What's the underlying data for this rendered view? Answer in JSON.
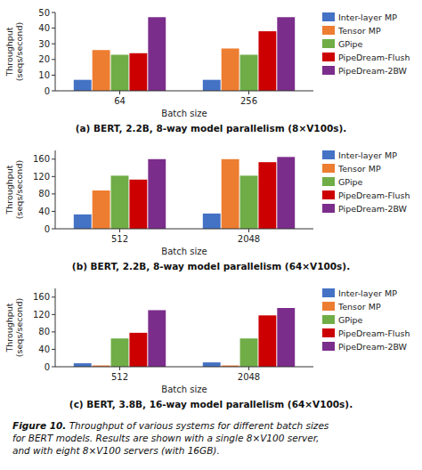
{
  "chart_data": [
    {
      "type": "bar",
      "title": "(a) BERT, 2.2B, 8-way model parallelism (8×V100s).",
      "categories": [
        "64",
        "256"
      ],
      "series": [
        {
          "name": "Inter-layer MP",
          "color": "#4472C4",
          "values": [
            7,
            7
          ]
        },
        {
          "name": "Tensor MP",
          "color": "#ED7D31",
          "values": [
            26,
            27
          ]
        },
        {
          "name": "GPipe",
          "color": "#70AD47",
          "values": [
            23,
            23
          ]
        },
        {
          "name": "PipeDream-Flush",
          "color": "#CC0000",
          "values": [
            24,
            38
          ]
        },
        {
          "name": "PipeDream-2BW",
          "color": "#7B2D8B",
          "values": [
            47,
            47
          ]
        }
      ],
      "ylim": [
        0,
        50
      ],
      "yticks": [
        0,
        10,
        20,
        30,
        40,
        50
      ],
      "xlabel": "Batch size",
      "ylabel": "Throughput\n(seqs/second)",
      "grid": false,
      "legend": "right"
    },
    {
      "type": "bar",
      "title": "(b) BERT, 2.2B, 8-way model parallelism (64×V100s).",
      "categories": [
        "512",
        "2048"
      ],
      "series": [
        {
          "name": "Inter-layer MP",
          "color": "#4472C4",
          "values": [
            33,
            35
          ]
        },
        {
          "name": "Tensor MP",
          "color": "#ED7D31",
          "values": [
            88,
            160
          ]
        },
        {
          "name": "GPipe",
          "color": "#70AD47",
          "values": [
            122,
            122
          ]
        },
        {
          "name": "PipeDream-Flush",
          "color": "#CC0000",
          "values": [
            113,
            153
          ]
        },
        {
          "name": "PipeDream-2BW",
          "color": "#7B2D8B",
          "values": [
            160,
            165
          ]
        }
      ],
      "ylim": [
        0,
        180
      ],
      "yticks": [
        0,
        40,
        80,
        120,
        160
      ],
      "xlabel": "Batch size",
      "ylabel": "Throughput\n(seqs/second)",
      "grid": false,
      "legend": "right"
    },
    {
      "type": "bar",
      "title": "(c) BERT, 3.8B, 16-way model parallelism (64×V100s).",
      "categories": [
        "512",
        "2048"
      ],
      "series": [
        {
          "name": "Inter-layer MP",
          "color": "#4472C4",
          "values": [
            8,
            10
          ]
        },
        {
          "name": "Tensor MP",
          "color": "#ED7D31",
          "values": [
            3,
            3
          ]
        },
        {
          "name": "GPipe",
          "color": "#70AD47",
          "values": [
            65,
            65
          ]
        },
        {
          "name": "PipeDream-Flush",
          "color": "#CC0000",
          "values": [
            78,
            118
          ]
        },
        {
          "name": "PipeDream-2BW",
          "color": "#7B2D8B",
          "values": [
            130,
            135
          ]
        }
      ],
      "ylim": [
        0,
        180
      ],
      "yticks": [
        0,
        40,
        80,
        120,
        160
      ],
      "xlabel": "Batch size",
      "ylabel": "Throughput\n(seqs/second)",
      "grid": false,
      "legend": "right"
    }
  ],
  "annotations": [
    "Figure 10.",
    " Throughput of various systems for different batch sizes\nfor BERT models. Results are shown with a single 8×V100 server,\nand with eight 8×V100 servers (with 16GB)."
  ]
}
